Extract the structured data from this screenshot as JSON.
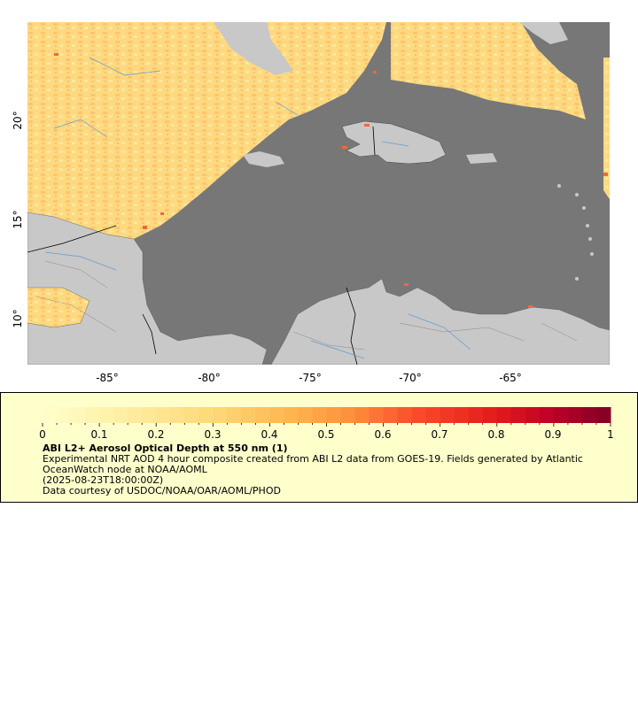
{
  "map": {
    "ocean_color": "#777777",
    "land_color": "#c8c8c8",
    "border_color": "#000000",
    "river_color": "#6699cc",
    "lon_ticks": [
      "-85°",
      "-80°",
      "-75°",
      "-70°",
      "-65°"
    ],
    "lat_ticks": [
      "20°",
      "15°",
      "10°"
    ]
  },
  "legend": {
    "colorbar_ticks": [
      "0",
      "0.1",
      "0.2",
      "0.3",
      "0.4",
      "0.5",
      "0.6",
      "0.7",
      "0.8",
      "0.9",
      "1"
    ],
    "colorbar_range": [
      0,
      1
    ],
    "title": "ABI L2+ Aerosol Optical Depth at 550 nm (1)",
    "line1": "Experimental NRT AOD 4 hour composite created from ABI L2 data from GOES-19. Fields generated by Atlantic OceanWatch node at NOAA/AOML",
    "line2": "(2025-08-23T18:00:00Z)",
    "line3": "Data courtesy of USDOC/NOAA/OAR/AOML/PHOD"
  }
}
